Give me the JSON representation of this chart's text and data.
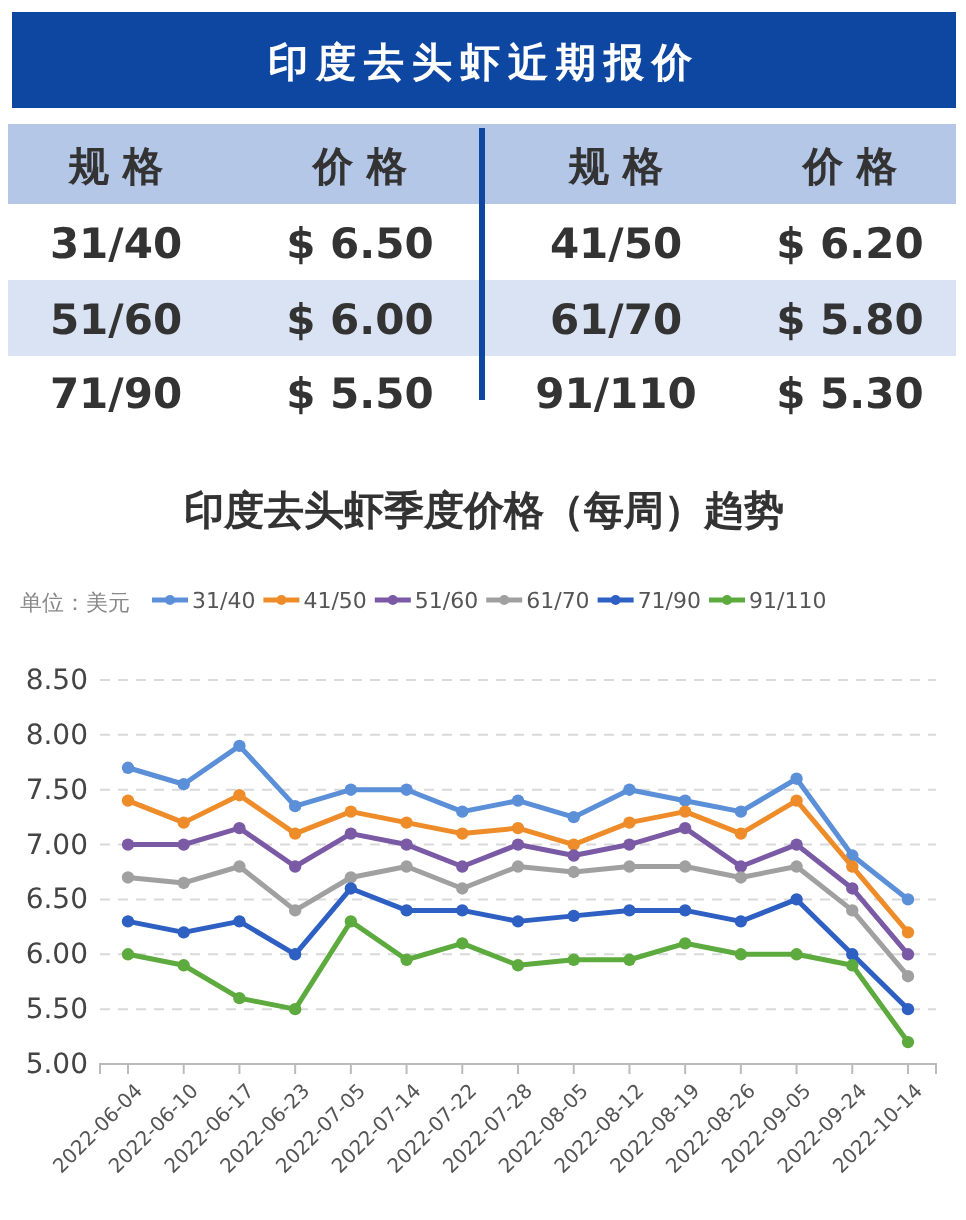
{
  "chart_data": [
    {
      "type": "other",
      "title": "印度去头虾近期报价",
      "annotations": [
        "规 格",
        "价 格",
        "规 格",
        "价 格",
        "31/40",
        "$ 6.50",
        "41/50",
        "$ 6.20",
        "51/60",
        "$ 6.00",
        "61/70",
        "$ 5.80",
        "71/90",
        "$ 5.50",
        "91/110",
        "$ 5.30"
      ]
    },
    {
      "type": "line",
      "title": "印度去头虾季度价格（每周）趋势",
      "ylabel": "单位：美元",
      "categories": [
        "2022-06-04",
        "2022-06-10",
        "2022-06-17",
        "2022-06-23",
        "2022-07-05",
        "2022-07-14",
        "2022-07-22",
        "2022-07-28",
        "2022-08-05",
        "2022-08-12",
        "2022-08-19",
        "2022-08-26",
        "2022-09-05",
        "2022-09-24",
        "2022-10-14"
      ],
      "series": [
        {
          "name": "31/40",
          "color": "#5b8fd8",
          "values": [
            7.7,
            7.55,
            7.9,
            7.35,
            7.5,
            7.5,
            7.3,
            7.4,
            7.25,
            7.5,
            7.4,
            7.3,
            7.6,
            6.9,
            6.5
          ]
        },
        {
          "name": "41/50",
          "color": "#ee8c2a",
          "values": [
            7.4,
            7.2,
            7.45,
            7.1,
            7.3,
            7.2,
            7.1,
            7.15,
            7.0,
            7.2,
            7.3,
            7.1,
            7.4,
            6.8,
            6.2
          ]
        },
        {
          "name": "51/60",
          "color": "#7a5aa5",
          "values": [
            7.0,
            7.0,
            7.15,
            6.8,
            7.1,
            7.0,
            6.8,
            7.0,
            6.9,
            7.0,
            7.15,
            6.8,
            7.0,
            6.6,
            6.0
          ]
        },
        {
          "name": "61/70",
          "color": "#a0a0a0",
          "values": [
            6.7,
            6.65,
            6.8,
            6.4,
            6.7,
            6.8,
            6.6,
            6.8,
            6.75,
            6.8,
            6.8,
            6.7,
            6.8,
            6.4,
            5.8
          ]
        },
        {
          "name": "71/90",
          "color": "#2e5fc2",
          "values": [
            6.3,
            6.2,
            6.3,
            6.0,
            6.6,
            6.4,
            6.4,
            6.3,
            6.35,
            6.4,
            6.4,
            6.3,
            6.5,
            6.0,
            5.5
          ]
        },
        {
          "name": "91/110",
          "color": "#5daa3e",
          "values": [
            6.0,
            5.9,
            5.6,
            5.5,
            6.3,
            5.95,
            6.1,
            5.9,
            5.95,
            5.95,
            6.1,
            6.0,
            6.0,
            5.9,
            5.2
          ]
        }
      ],
      "ylim": [
        5,
        8.5
      ],
      "yticks": [
        {
          "value": 5,
          "label": "5.00"
        },
        {
          "value": 5.5,
          "label": "5.50"
        },
        {
          "value": 6,
          "label": "6.00"
        },
        {
          "value": 6.5,
          "label": "6.50"
        },
        {
          "value": 7,
          "label": "7.00"
        },
        {
          "value": 7.5,
          "label": "7.50"
        },
        {
          "value": 8,
          "label": "8.00"
        },
        {
          "value": 8.5,
          "label": "8.50"
        }
      ],
      "grid": "y",
      "legend": "top",
      "marker": "circle",
      "line_style": "solid"
    }
  ]
}
